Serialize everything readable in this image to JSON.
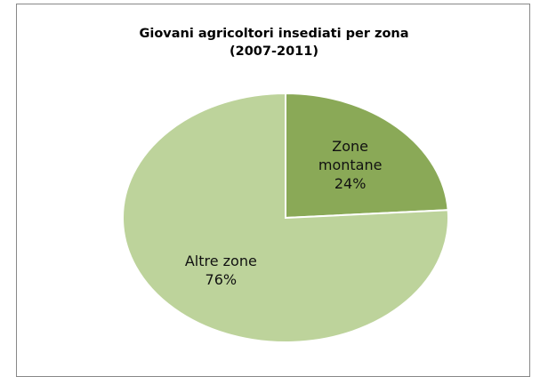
{
  "chart_data": {
    "type": "pie",
    "title": "Giovani agricoltori insediati per zona\n(2007-2011)",
    "categories": [
      "Zone montane",
      "Altre zone"
    ],
    "values": [
      24,
      76
    ],
    "value_labels": [
      "24%",
      "76%"
    ],
    "colors": [
      "#8aa957",
      "#bdd39b"
    ]
  }
}
